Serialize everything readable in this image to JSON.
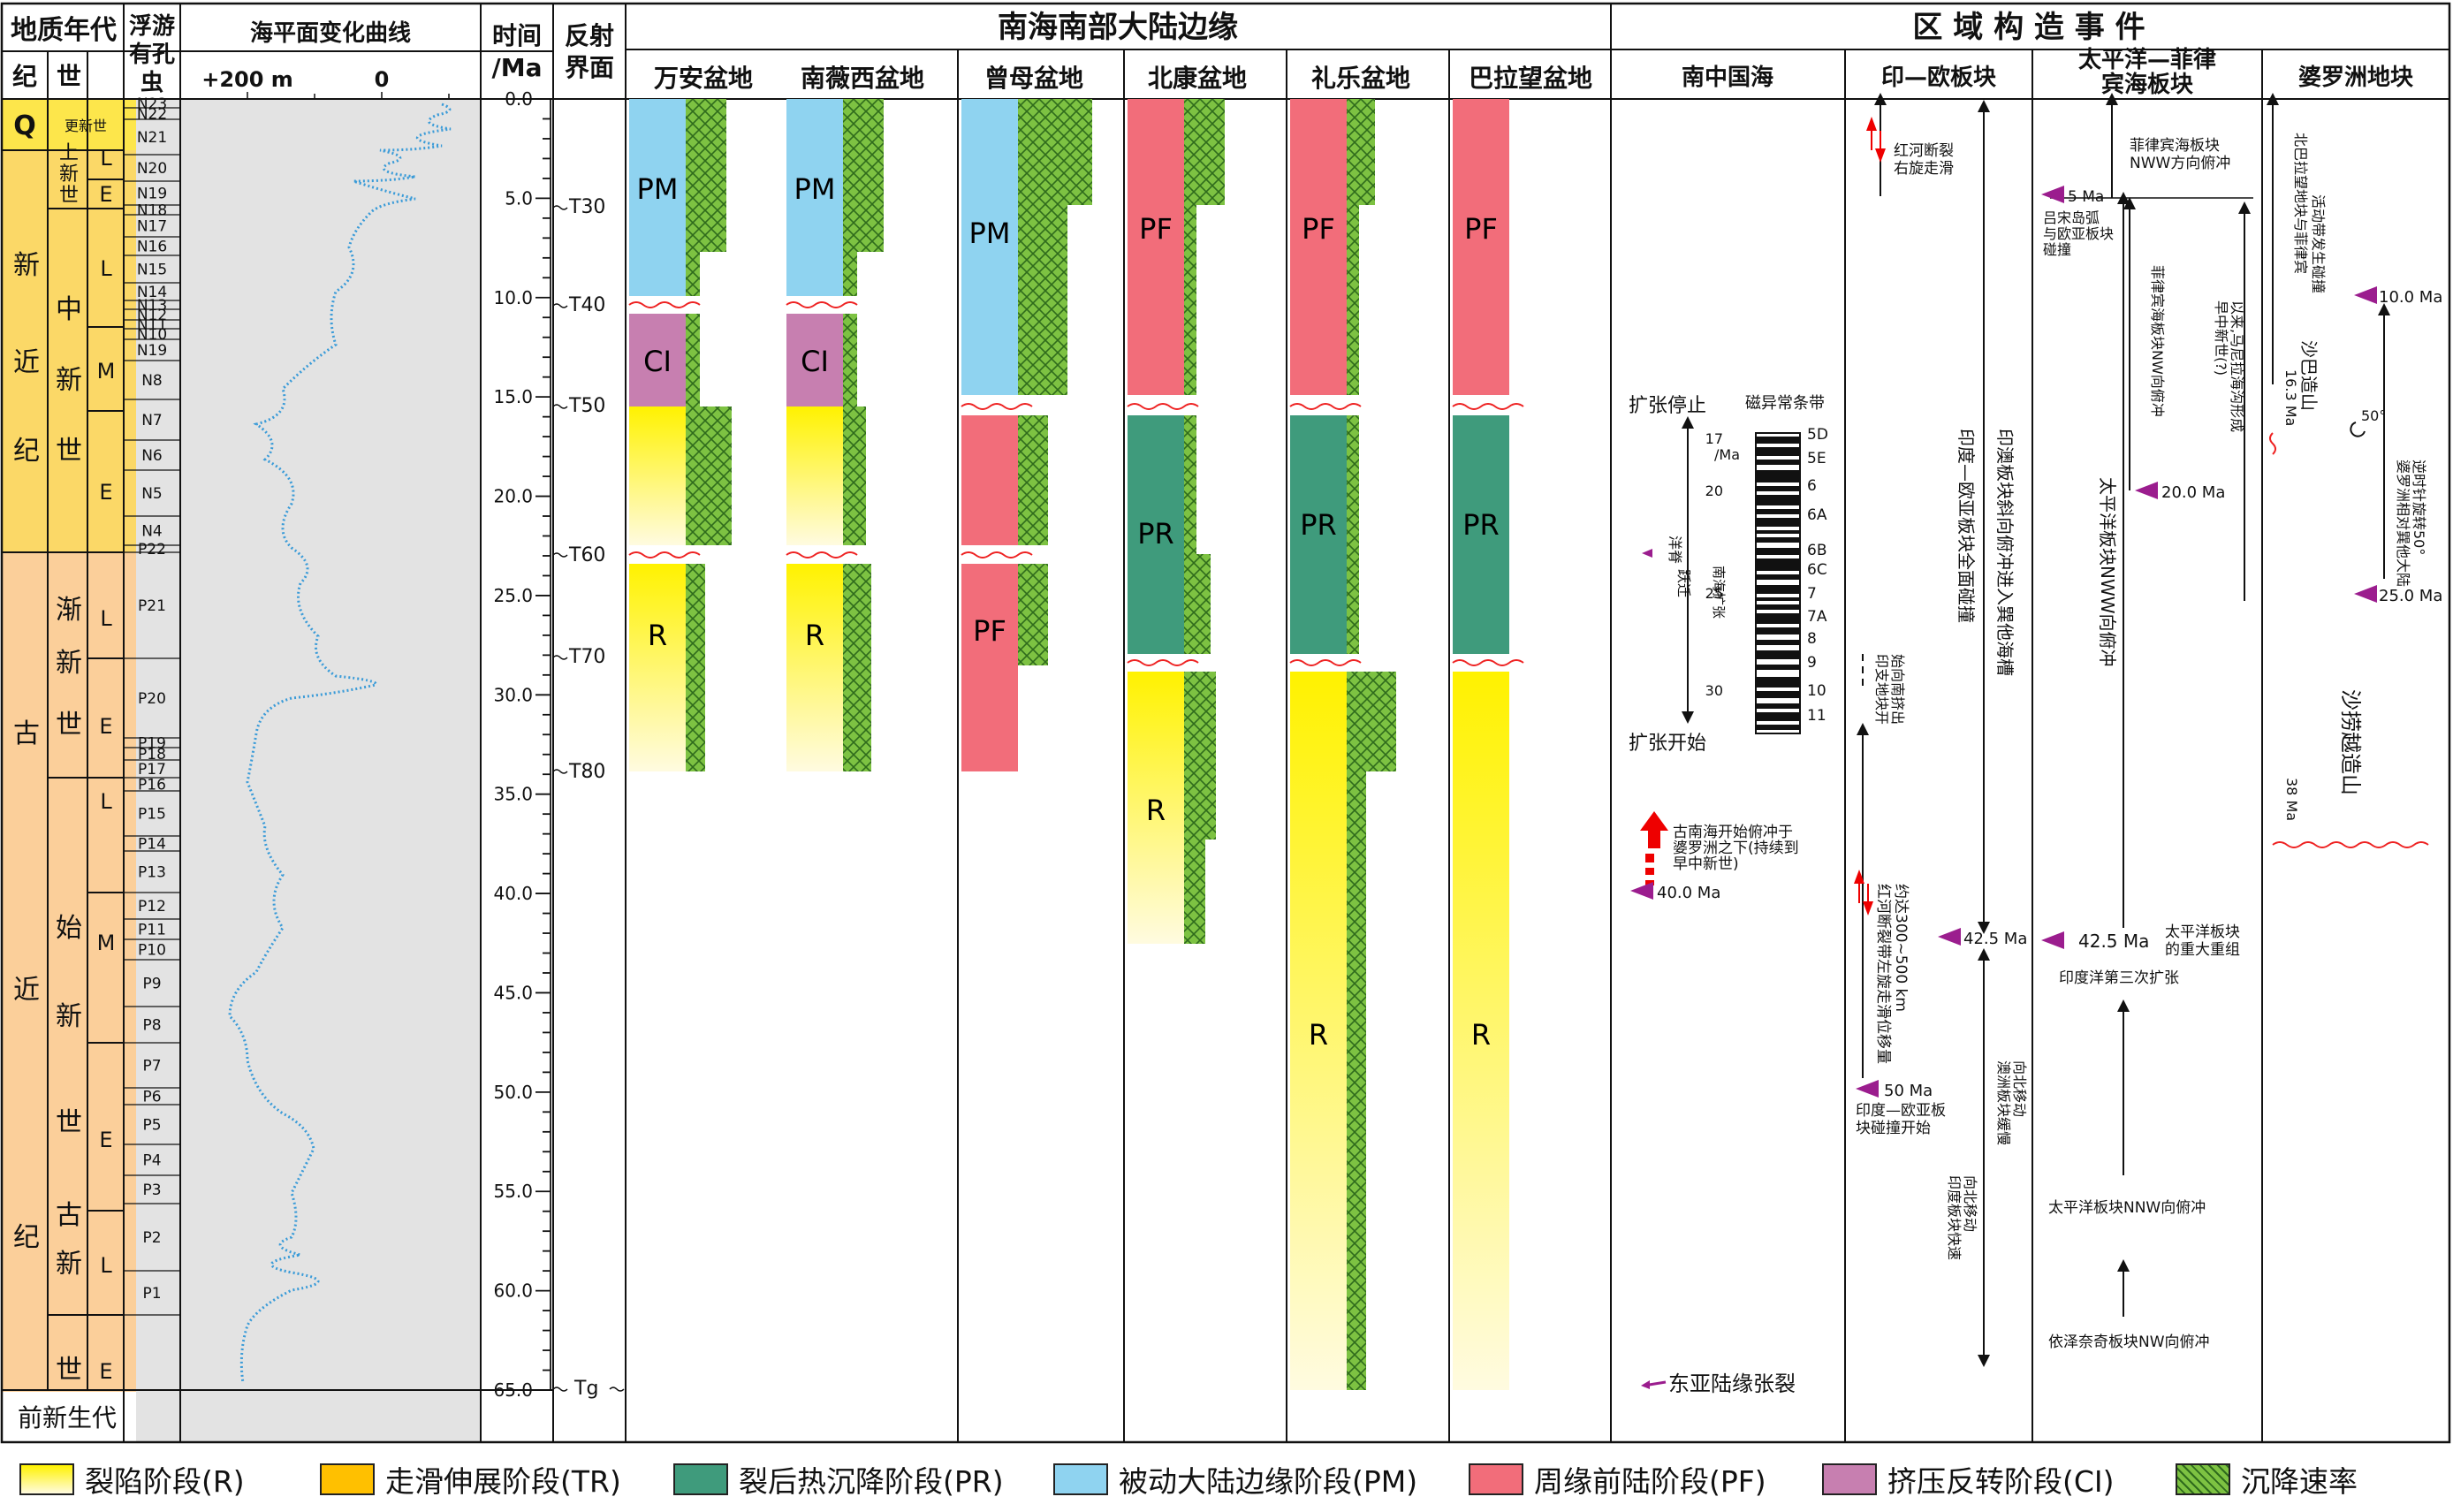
{
  "header": {
    "geo_age": "地质年代",
    "period": "纪",
    "epoch": "世",
    "foram": "浮游有孔虫",
    "sea_level": "海平面变化曲线",
    "sea_tick_200": "+200 m",
    "sea_tick_0": "0",
    "time": "时间/Ma",
    "reflector": "反射界面",
    "margin_title": "南海南部大陆边缘",
    "tectonic_title": "区 域 构 造 事 件"
  },
  "periods": [
    "Q",
    "新近纪",
    "古近纪",
    "前新生代"
  ],
  "epochs": [
    "更新世",
    "上新世",
    "中新世",
    "渐新世",
    "始新世",
    "古新世"
  ],
  "subepochs": [
    "L",
    "E",
    "L",
    "M",
    "E",
    "L",
    "E",
    "L",
    "M",
    "E",
    "L",
    "E"
  ],
  "forams": [
    "N23",
    "N22",
    "N21",
    "N20",
    "N19",
    "N18",
    "N17",
    "N16",
    "N15",
    "N14",
    "N13",
    "N12",
    "N11",
    "N10",
    "N19",
    "N8",
    "N7",
    "N6",
    "N5",
    "N4",
    "P22",
    "P21",
    "P20",
    "P19",
    "P18",
    "P17",
    "P16",
    "P15",
    "P14",
    "P13",
    "P12",
    "P11",
    "P10",
    "P9",
    "P8",
    "P7",
    "P6",
    "P5",
    "P4",
    "P3",
    "P2",
    "P1"
  ],
  "time_ticks": [
    "0.0",
    "5.0",
    "10.0",
    "15.0",
    "20.0",
    "25.0",
    "30.0",
    "35.0",
    "40.0",
    "45.0",
    "50.0",
    "55.0",
    "60.0",
    "65.0"
  ],
  "reflectors": [
    "T30",
    "T40",
    "T50",
    "T60",
    "T70",
    "T80",
    "Tg"
  ],
  "basins": [
    "万安盆地",
    "南薇西盆地",
    "曾母盆地",
    "北康盆地",
    "礼乐盆地",
    "巴拉望盆地"
  ],
  "stage_codes": {
    "pm": "PM",
    "ci": "CI",
    "r": "R",
    "pf": "PF",
    "pr": "PR"
  },
  "tectonic_regions": [
    "南中国海",
    "印—欧板块",
    "太平洋—菲律宾海板块",
    "婆罗洲地块"
  ],
  "scs": {
    "spread_stop": "扩张停止",
    "spread_start": "扩张开始",
    "magnetic": "磁异常条带",
    "mag_age_unit": "/Ma",
    "mag_ages": [
      "17",
      "20",
      "25",
      "30"
    ],
    "mag_chrons": [
      "5D",
      "5E",
      "6",
      "6A",
      "6B",
      "6C",
      "7",
      "7A",
      "8",
      "9",
      "10",
      "11"
    ],
    "jump": "洋脊跃迁",
    "south_spread": "南海扩张",
    "proto_scs": "古南海开始俯冲于婆罗洲之下(持续到早中新世)",
    "age_40": "40.0 Ma",
    "east_asia": "东亚陆缘张裂"
  },
  "indo": {
    "red_river_right": "红河断裂右旋走滑",
    "collision_full": "印度—欧亚板块全面碰撞",
    "oblique": "印澳板块斜向俯冲进入巽他海槽",
    "indochina": "印支地块开始向南挤出",
    "age_425": "42.5 Ma",
    "red_river_left": "红河断裂带左旋走滑位移量约达300~500 km",
    "age_50": "50 Ma",
    "collision_start": "印度—欧亚板块碰撞开始",
    "aus_north": "澳洲板块缓慢向北移动",
    "india_fast": "印度板块快速向北移动"
  },
  "pacific": {
    "nww": "菲律宾海板块NWW方向俯冲",
    "age_5": "5 Ma",
    "arc": "吕宋岛弧与欧亚板块碰撞",
    "nw_phil": "菲律宾海板块NW向俯冲",
    "palawan": "早中新世(?)以来,马尼拉海沟形成",
    "age_20": "20.0 Ma",
    "pac_nww": "太平洋板块NWW向俯冲",
    "age_425": "42.5 Ma",
    "reorg": "太平洋板块的重大重组",
    "third": "印度洋第三次扩张",
    "pac_nnw": "太平洋板块NNW向俯冲",
    "izanagi": "依泽奈奇板块NW向俯冲"
  },
  "borneo": {
    "north_palawan": "北巴拉望地块与菲律宾活动带发生碰撞",
    "age_10": "10.0 Ma",
    "age_163": "16.3 Ma",
    "sabah": "沙巴造山",
    "deg50": "50°",
    "rotation": "婆罗洲相对巽他大陆逆时针旋转50°",
    "age_25": "25.0 Ma",
    "age_38": "38 Ma",
    "sarawak": "沙捞越造山"
  },
  "legend": [
    {
      "label": "裂陷阶段(R)",
      "color": "#fff200"
    },
    {
      "label": "走滑伸展阶段(TR)",
      "color": "#ffc000"
    },
    {
      "label": "裂后热沉降阶段(PR)",
      "color": "#3f9b7c"
    },
    {
      "label": "被动大陆边缘阶段(PM)",
      "color": "#8fd3f0"
    },
    {
      "label": "周缘前陆阶段(PF)",
      "color": "#f26d7a"
    },
    {
      "label": "挤压反转阶段(CI)",
      "color": "#c77fb0"
    },
    {
      "label": "沉降速率",
      "color": "#7dc242"
    }
  ],
  "colors": {
    "yellow": "#fff200",
    "teal": "#3f9b7c",
    "blue": "#8fd3f0",
    "pink": "#f26d7a",
    "purple": "#c77fb0",
    "green": "#7dc242",
    "q_yellow": "#fde64b",
    "neogene": "#fbd867",
    "paleogene": "#fbcf9a",
    "gray": "#e3e3e3",
    "sea_curve": "#3a9bd8",
    "marker": "#9b1d8e"
  }
}
